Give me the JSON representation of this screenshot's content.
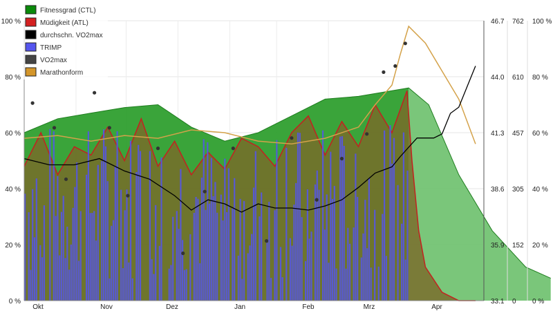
{
  "chart_data": {
    "type": "area",
    "x_categories": [
      "Okt",
      "Nov",
      "Dez",
      "Jan",
      "Feb",
      "Mrz",
      "Apr"
    ],
    "axes": {
      "left_percent_ticks": [
        "100 %",
        "80 %",
        "60 %",
        "40 %",
        "20 %",
        "0 %"
      ],
      "vo2max_ticks": [
        "46.7",
        "44.0",
        "41.3",
        "38.6",
        "35.9",
        "33.1"
      ],
      "trimp_ticks": [
        "762",
        "610",
        "457",
        "305",
        "152",
        "0"
      ],
      "right_percent_ticks": [
        "100 %",
        "80 %",
        "60 %",
        "40 %",
        "20 %",
        "0 %"
      ],
      "grid": true,
      "legend": "top-left"
    },
    "legend": [
      {
        "key": "ctl",
        "label": "Fitnessgrad (CTL)",
        "color": "#0a8a0a"
      },
      {
        "key": "atl",
        "label": "Müdigkeit (ATL)",
        "color": "#d42020"
      },
      {
        "key": "avg_vo2",
        "label": "durchschn. VO2max",
        "color": "#000000"
      },
      {
        "key": "trimp",
        "label": "TRIMP",
        "color": "#5555ee"
      },
      {
        "key": "vo2",
        "label": "VO2max",
        "color": "#444444"
      },
      {
        "key": "marathon",
        "label": "Marathonform",
        "color": "#d4962a"
      }
    ],
    "series": {
      "ctl_percent": {
        "x": [
          0,
          20,
          40,
          60,
          80,
          100,
          120,
          140,
          160,
          180,
          200,
          220,
          230,
          242,
          260,
          280,
          300,
          315
        ],
        "y": [
          60,
          65,
          67,
          69,
          70,
          62,
          57,
          60,
          66,
          72,
          73,
          75,
          76,
          70,
          45,
          25,
          12,
          8
        ],
        "note_projection_from_x": 230
      },
      "atl_percent": {
        "x": [
          0,
          10,
          20,
          30,
          40,
          50,
          60,
          70,
          80,
          90,
          100,
          110,
          120,
          130,
          140,
          150,
          160,
          170,
          180,
          190,
          200,
          210,
          220,
          229,
          232,
          236,
          240,
          250,
          260,
          270
        ],
        "y": [
          48,
          60,
          45,
          55,
          52,
          62,
          50,
          65,
          48,
          57,
          45,
          53,
          47,
          58,
          55,
          48,
          60,
          66,
          52,
          64,
          55,
          70,
          60,
          75,
          50,
          25,
          12,
          3,
          0,
          0
        ]
      },
      "avg_vo2max": {
        "x": [
          0,
          15,
          30,
          45,
          60,
          75,
          90,
          100,
          110,
          120,
          130,
          140,
          150,
          160,
          170,
          180,
          190,
          200,
          210,
          220,
          225,
          235,
          245,
          250,
          255,
          260,
          265,
          270
        ],
        "y": [
          40.0,
          39.7,
          39.7,
          40.0,
          39.4,
          39.0,
          38.2,
          37.5,
          38.0,
          37.8,
          37.4,
          37.8,
          37.6,
          37.6,
          37.5,
          37.7,
          38.0,
          38.6,
          39.3,
          39.6,
          40.1,
          41.0,
          41.0,
          41.2,
          42.2,
          42.5,
          43.5,
          44.5
        ]
      },
      "marathon_percent": {
        "x": [
          0,
          20,
          40,
          60,
          80,
          100,
          120,
          140,
          160,
          180,
          200,
          210,
          220,
          225,
          230,
          240,
          250,
          260,
          270
        ],
        "y": [
          58,
          59,
          57,
          59,
          58,
          61,
          60,
          57,
          56,
          58,
          62,
          70,
          77,
          88,
          98,
          92,
          82,
          72,
          56
        ]
      },
      "trimp": {
        "x_range": [
          0,
          230
        ],
        "typical_range": [
          50,
          480
        ]
      },
      "vo2max_points": {
        "x": [
          5,
          18,
          25,
          42,
          51,
          62,
          80,
          95,
          108,
          125,
          145,
          160,
          175,
          190,
          205,
          215,
          222,
          228
        ],
        "y": [
          42.7,
          41.5,
          39.0,
          43.2,
          41.5,
          38.2,
          40.5,
          35.4,
          38.4,
          40.5,
          36.0,
          41.0,
          38.0,
          40.0,
          41.2,
          44.2,
          44.5,
          45.6
        ]
      }
    }
  }
}
